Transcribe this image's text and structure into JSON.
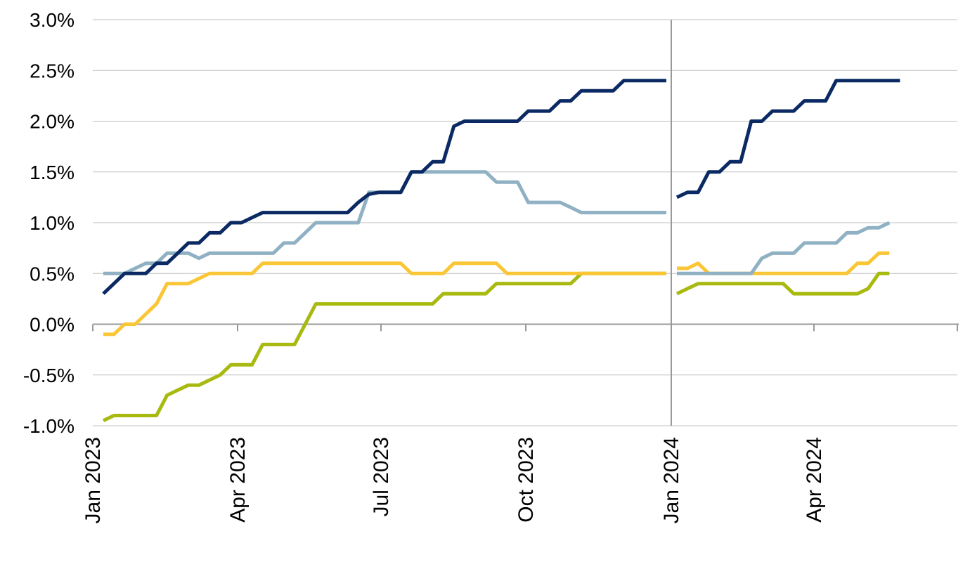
{
  "chart_data": {
    "type": "line",
    "title": "",
    "xlabel": "",
    "ylabel": "",
    "ylim": [
      -1.0,
      3.0
    ],
    "y_ticks": [
      "3.0%",
      "2.5%",
      "2.0%",
      "1.5%",
      "1.0%",
      "0.5%",
      "0.0%",
      "-0.5%",
      "-1.0%"
    ],
    "x_ticks": [
      "Jan 2023",
      "Apr 2023",
      "Jul 2023",
      "Oct 2023",
      "Jan 2024",
      "Apr 2024"
    ],
    "grid": true,
    "legend": "none",
    "colors": {
      "series1": "#0b2a63",
      "series2": "#8fb1c3",
      "series3": "#fbc635",
      "series4": "#a8b90f",
      "divider": "#999999",
      "grid": "#bfbfbf"
    },
    "week_step_x_units": "weeks from Jan 2023",
    "segments": [
      {
        "period": "2023",
        "series": [
          {
            "values": [
              0.3,
              0.4,
              0.5,
              0.5,
              0.5,
              0.6,
              0.6,
              0.7,
              0.8,
              0.8,
              0.9,
              0.9,
              1.0,
              1.0,
              1.05,
              1.1,
              1.1,
              1.1,
              1.1,
              1.1,
              1.1,
              1.1,
              1.1,
              1.1,
              1.2,
              1.28,
              1.3,
              1.3,
              1.3,
              1.5,
              1.5,
              1.6,
              1.6,
              1.95,
              2.0,
              2.0,
              2.0,
              2.0,
              2.0,
              2.0,
              2.1,
              2.1,
              2.1,
              2.2,
              2.2,
              2.3,
              2.3,
              2.3,
              2.3,
              2.4,
              2.4,
              2.4,
              2.4,
              2.4
            ]
          },
          {
            "values": [
              0.5,
              0.5,
              0.5,
              0.55,
              0.6,
              0.6,
              0.7,
              0.7,
              0.7,
              0.65,
              0.7,
              0.7,
              0.7,
              0.7,
              0.7,
              0.7,
              0.7,
              0.8,
              0.8,
              0.9,
              1.0,
              1.0,
              1.0,
              1.0,
              1.0,
              1.3,
              1.3,
              1.3,
              1.3,
              1.5,
              1.5,
              1.5,
              1.5,
              1.5,
              1.5,
              1.5,
              1.5,
              1.4,
              1.4,
              1.4,
              1.2,
              1.2,
              1.2,
              1.2,
              1.15,
              1.1,
              1.1,
              1.1,
              1.1,
              1.1,
              1.1,
              1.1,
              1.1,
              1.1
            ]
          },
          {
            "values": [
              -0.1,
              -0.1,
              0.0,
              0.0,
              0.1,
              0.2,
              0.4,
              0.4,
              0.4,
              0.45,
              0.5,
              0.5,
              0.5,
              0.5,
              0.5,
              0.6,
              0.6,
              0.6,
              0.6,
              0.6,
              0.6,
              0.6,
              0.6,
              0.6,
              0.6,
              0.6,
              0.6,
              0.6,
              0.6,
              0.5,
              0.5,
              0.5,
              0.5,
              0.6,
              0.6,
              0.6,
              0.6,
              0.6,
              0.5,
              0.5,
              0.5,
              0.5,
              0.5,
              0.5,
              0.5,
              0.5,
              0.5,
              0.5,
              0.5,
              0.5,
              0.5,
              0.5,
              0.5,
              0.5
            ]
          },
          {
            "values": [
              -0.95,
              -0.9,
              -0.9,
              -0.9,
              -0.9,
              -0.9,
              -0.7,
              -0.65,
              -0.6,
              -0.6,
              -0.55,
              -0.5,
              -0.4,
              -0.4,
              -0.4,
              -0.2,
              -0.2,
              -0.2,
              -0.2,
              0.0,
              0.2,
              0.2,
              0.2,
              0.2,
              0.2,
              0.2,
              0.2,
              0.2,
              0.2,
              0.2,
              0.2,
              0.2,
              0.3,
              0.3,
              0.3,
              0.3,
              0.3,
              0.4,
              0.4,
              0.4,
              0.4,
              0.4,
              0.4,
              0.4,
              0.4,
              0.5,
              0.5,
              0.5,
              0.5,
              0.5,
              0.5,
              0.5,
              0.5,
              0.5
            ]
          }
        ]
      },
      {
        "period": "2024",
        "series": [
          {
            "values": [
              1.25,
              1.3,
              1.3,
              1.5,
              1.5,
              1.6,
              1.6,
              2.0,
              2.0,
              2.1,
              2.1,
              2.1,
              2.2,
              2.2,
              2.2,
              2.4,
              2.4,
              2.4,
              2.4,
              2.4,
              2.4,
              2.4
            ]
          },
          {
            "values": [
              0.5,
              0.5,
              0.5,
              0.5,
              0.5,
              0.5,
              0.5,
              0.5,
              0.65,
              0.7,
              0.7,
              0.7,
              0.8,
              0.8,
              0.8,
              0.8,
              0.9,
              0.9,
              0.95,
              0.95,
              1.0
            ]
          },
          {
            "values": [
              0.55,
              0.55,
              0.6,
              0.5,
              0.5,
              0.5,
              0.5,
              0.5,
              0.5,
              0.5,
              0.5,
              0.5,
              0.5,
              0.5,
              0.5,
              0.5,
              0.5,
              0.6,
              0.6,
              0.7,
              0.7
            ]
          },
          {
            "values": [
              0.3,
              0.35,
              0.4,
              0.4,
              0.4,
              0.4,
              0.4,
              0.4,
              0.4,
              0.4,
              0.4,
              0.3,
              0.3,
              0.3,
              0.3,
              0.3,
              0.3,
              0.3,
              0.35,
              0.5,
              0.5
            ]
          }
        ]
      }
    ]
  }
}
